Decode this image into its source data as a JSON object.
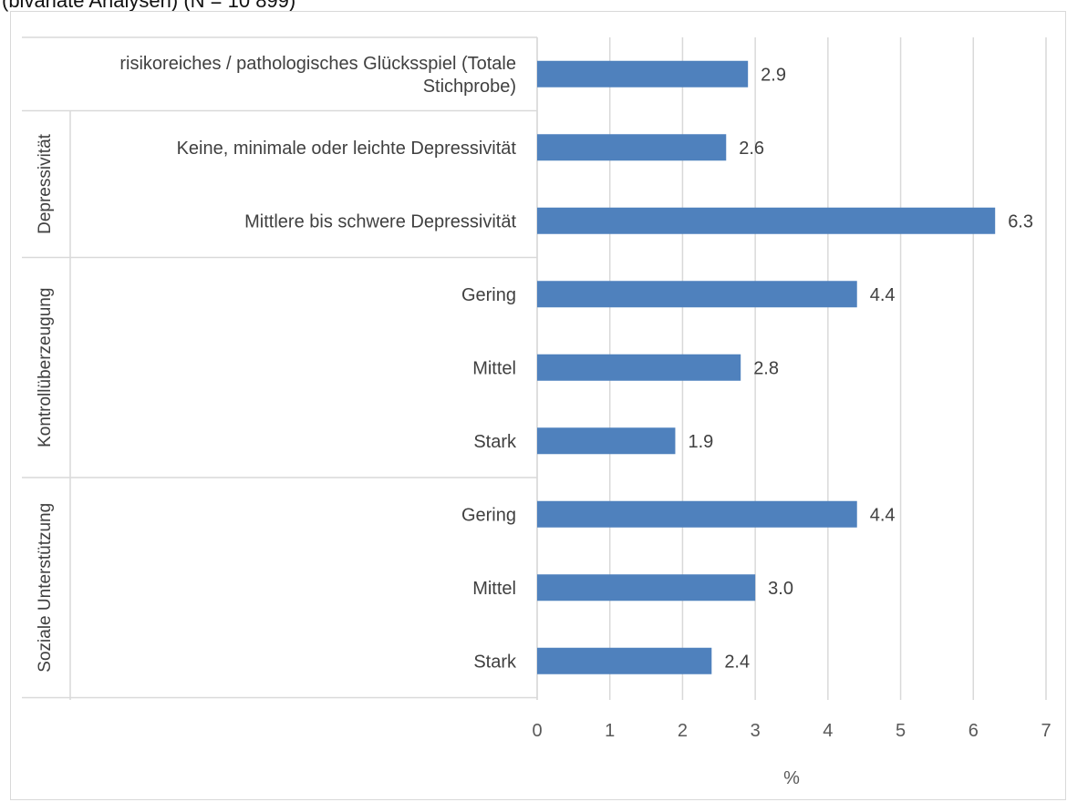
{
  "caption": "(bivariate Analysen) (N = 10 899)",
  "chart_data": {
    "type": "bar",
    "orientation": "horizontal",
    "categories": [
      [
        "risikoreiches / pathologisches Glücksspiel (Totale",
        "Stichprobe)"
      ],
      [
        "Keine, minimale oder leichte Depressivität"
      ],
      [
        "Mittlere bis schwere Depressivität"
      ],
      [
        "Gering"
      ],
      [
        "Mittel"
      ],
      [
        "Stark"
      ],
      [
        "Gering"
      ],
      [
        "Mittel"
      ],
      [
        "Stark"
      ]
    ],
    "values": [
      2.9,
      2.6,
      6.3,
      4.4,
      2.8,
      1.9,
      4.4,
      3.0,
      2.4
    ],
    "value_labels": [
      "2.9",
      "2.6",
      "6.3",
      "4.4",
      "2.8",
      "1.9",
      "4.4",
      "3.0",
      "2.4"
    ],
    "groups": [
      {
        "label": "",
        "start": 0,
        "end": 0
      },
      {
        "label": "Depressivität",
        "start": 1,
        "end": 2
      },
      {
        "label": "Kontrollüberzeugung",
        "start": 3,
        "end": 5
      },
      {
        "label": "Soziale Unterstützung",
        "start": 6,
        "end": 8
      }
    ],
    "xlim": [
      0,
      7
    ],
    "xticks": [
      "0",
      "1",
      "2",
      "3",
      "4",
      "5",
      "6",
      "7"
    ],
    "xlabel": "%",
    "bar_color": "#4f81bd",
    "grid": true
  }
}
